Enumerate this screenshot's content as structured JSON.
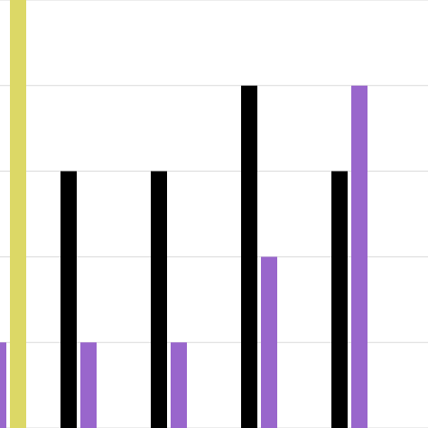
{
  "chart_data": {
    "type": "bar",
    "categories": [
      null,
      null,
      null,
      null,
      null
    ],
    "series": [
      {
        "color": "#000000",
        "values": [
          null,
          3,
          3,
          4,
          3
        ]
      },
      {
        "color": "#9966cc",
        "values": [
          1,
          1,
          1,
          2,
          4
        ]
      },
      {
        "color": "#dcd866",
        "values": [
          5,
          0,
          0,
          0,
          0
        ]
      }
    ],
    "ylim": [
      0,
      5
    ],
    "yticks": [
      0,
      1,
      2,
      3,
      4,
      5
    ],
    "grid": true,
    "grid_color": "#d9d9d9"
  }
}
